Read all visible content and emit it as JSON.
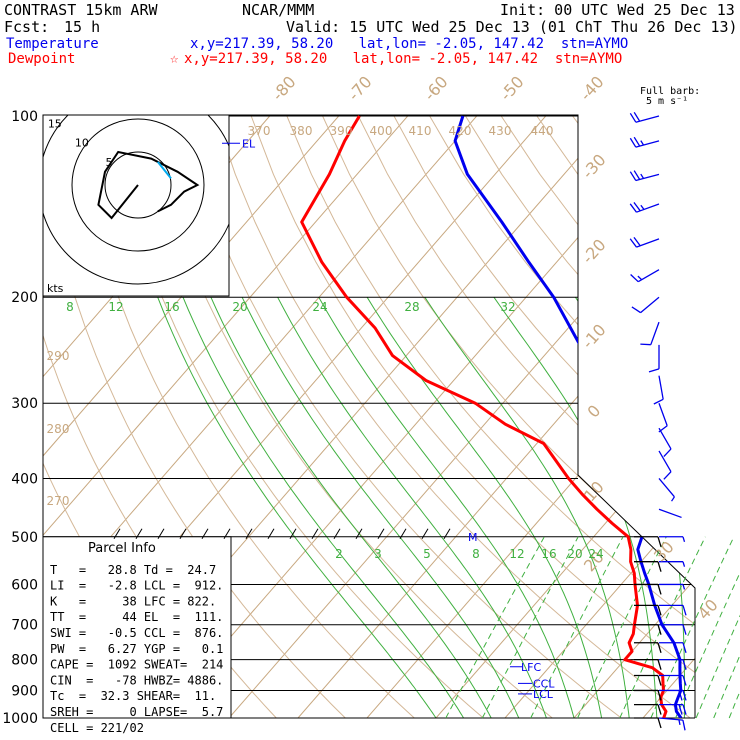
{
  "header": {
    "model": "CONTRAST 15km ARW",
    "center": "NCAR/MMM",
    "init": "Init: 00 UTC Wed 25 Dec 13",
    "fcst_label": "Fcst:",
    "fcst_value": "15 h",
    "valid": "Valid: 15 UTC Wed 25 Dec 13 (01 ChT Thu 26 Dec 13)"
  },
  "legend": [
    {
      "name": "Temperature",
      "marker": "",
      "info": "x,y=217.39, 58.20   lat,lon= -2.05, 147.42  stn=AYMO",
      "color": "#0000ee"
    },
    {
      "name": "Dewpoint",
      "marker": "☆",
      "info": "x,y=217.39, 58.20   lat,lon= -2.05, 147.42  stn=AYMO",
      "color": "#ff0000"
    }
  ],
  "barb_title": [
    "Full barb:",
    "5 m s⁻¹"
  ],
  "hodograph": {
    "rings": [
      "15",
      "10",
      "5"
    ],
    "units": "kts"
  },
  "parcel_info": {
    "title": "Parcel Info",
    "rows": [
      "T   =   28.8 Td =  24.7",
      "LI  =   -2.8 LCL =  912.",
      "K   =     38 LFC = 822.",
      "TT  =     44 EL  =  111.",
      "SWI =   -0.5 CCL =  876.",
      "PW  =   6.27 YGP =   0.1",
      "CAPE =  1092 SWEAT=  214",
      "CIN  =   -78 HWBZ= 4886.",
      "Tc  =  32.3 SHEAR=  11.",
      "SREH =     0 LAPSE=  5.7",
      "CELL = 221/02"
    ]
  },
  "levels": {
    "el": "EL",
    "lfc": "LFC",
    "ccl": "CCL",
    "lcl": "LCL",
    "m": "M"
  },
  "chart_data": {
    "type": "line",
    "pressure_ticks": [
      "100",
      "200",
      "300",
      "400",
      "500",
      "600",
      "700",
      "800",
      "900",
      "1000"
    ],
    "isotherm_labels": [
      "-80",
      "-70",
      "-60",
      "-50",
      "-40",
      "-30",
      "-20",
      "-10",
      "0",
      "10",
      "20",
      "30",
      "40"
    ],
    "theta_labels": [
      "370",
      "380",
      "390",
      "400",
      "410",
      "420",
      "430",
      "440",
      "290",
      "280",
      "270"
    ],
    "mixing_ratio_upper": [
      "8",
      "12",
      "16",
      "20",
      "24",
      "28",
      "32"
    ],
    "mixing_ratio_lower": [
      "2",
      "3",
      "5",
      "8",
      "12",
      "16",
      "20",
      "24"
    ],
    "series": [
      {
        "name": "Temperature",
        "color": "#0000ee",
        "points": [
          [
            1000,
            25.5
          ],
          [
            975,
            24
          ],
          [
            950,
            23
          ],
          [
            925,
            22.5
          ],
          [
            900,
            22
          ],
          [
            875,
            21
          ],
          [
            850,
            20
          ],
          [
            825,
            19
          ],
          [
            800,
            18
          ],
          [
            750,
            15
          ],
          [
            700,
            11
          ],
          [
            650,
            7.5
          ],
          [
            600,
            4
          ],
          [
            575,
            2
          ],
          [
            550,
            0
          ],
          [
            525,
            -2
          ],
          [
            500,
            -3
          ],
          [
            475,
            -4
          ],
          [
            450,
            -6
          ],
          [
            425,
            -8
          ],
          [
            400,
            -11
          ],
          [
            350,
            -16
          ],
          [
            300,
            -24
          ],
          [
            250,
            -34
          ],
          [
            200,
            -46
          ],
          [
            175,
            -54
          ],
          [
            150,
            -63
          ],
          [
            125,
            -74
          ],
          [
            110,
            -80
          ],
          [
            100,
            -82
          ]
        ]
      },
      {
        "name": "Dewpoint",
        "color": "#ff0000",
        "points": [
          [
            1000,
            23
          ],
          [
            975,
            22.5
          ],
          [
            950,
            21
          ],
          [
            925,
            20
          ],
          [
            900,
            19.5
          ],
          [
            875,
            18.5
          ],
          [
            850,
            17.5
          ],
          [
            825,
            15
          ],
          [
            800,
            10
          ],
          [
            775,
            10
          ],
          [
            750,
            8.5
          ],
          [
            725,
            8
          ],
          [
            700,
            7
          ],
          [
            650,
            5
          ],
          [
            600,
            2
          ],
          [
            575,
            0.5
          ],
          [
            550,
            -1.5
          ],
          [
            525,
            -3
          ],
          [
            500,
            -5
          ],
          [
            475,
            -9
          ],
          [
            450,
            -13
          ],
          [
            425,
            -17
          ],
          [
            400,
            -21
          ],
          [
            350,
            -29
          ],
          [
            325,
            -37
          ],
          [
            300,
            -44
          ],
          [
            275,
            -54
          ],
          [
            250,
            -62
          ],
          [
            225,
            -68
          ],
          [
            200,
            -76
          ],
          [
            175,
            -84
          ],
          [
            150,
            -92
          ],
          [
            125,
            -94
          ],
          [
            110,
            -96
          ],
          [
            100,
            -97
          ]
        ]
      }
    ],
    "wind_barbs_blue": [
      {
        "p": 100,
        "ws": 12,
        "dir": 255
      },
      {
        "p": 110,
        "ws": 13,
        "dir": 255
      },
      {
        "p": 125,
        "ws": 14,
        "dir": 255
      },
      {
        "p": 140,
        "ws": 13,
        "dir": 250
      },
      {
        "p": 160,
        "ws": 12,
        "dir": 250
      },
      {
        "p": 180,
        "ws": 9,
        "dir": 240
      },
      {
        "p": 200,
        "ws": 7,
        "dir": 230
      },
      {
        "p": 220,
        "ws": 6,
        "dir": 200
      },
      {
        "p": 240,
        "ws": 6,
        "dir": 180
      },
      {
        "p": 270,
        "ws": 5,
        "dir": 170
      },
      {
        "p": 300,
        "ws": 5,
        "dir": 160
      },
      {
        "p": 330,
        "ws": 5,
        "dir": 150
      },
      {
        "p": 360,
        "ws": 5,
        "dir": 150
      },
      {
        "p": 400,
        "ws": 3,
        "dir": 140
      },
      {
        "p": 450,
        "ws": 2,
        "dir": 110
      },
      {
        "p": 500,
        "ws": 3,
        "dir": 90
      },
      {
        "p": 550,
        "ws": 3,
        "dir": 90
      },
      {
        "p": 600,
        "ws": 4,
        "dir": 90
      },
      {
        "p": 650,
        "ws": 5,
        "dir": 90
      },
      {
        "p": 700,
        "ws": 5,
        "dir": 90
      },
      {
        "p": 750,
        "ws": 6,
        "dir": 90
      },
      {
        "p": 800,
        "ws": 7,
        "dir": 90
      },
      {
        "p": 850,
        "ws": 8,
        "dir": 90
      },
      {
        "p": 900,
        "ws": 10,
        "dir": 90
      },
      {
        "p": 950,
        "ws": 10,
        "dir": 90
      },
      {
        "p": 1000,
        "ws": 9,
        "dir": 95
      }
    ],
    "wind_barbs_black": [
      {
        "p": 500,
        "ws": 5,
        "dir": 90
      },
      {
        "p": 550,
        "ws": 5,
        "dir": 90
      },
      {
        "p": 600,
        "ws": 5,
        "dir": 90
      },
      {
        "p": 650,
        "ws": 5,
        "dir": 90
      },
      {
        "p": 700,
        "ws": 5,
        "dir": 90
      },
      {
        "p": 750,
        "ws": 5,
        "dir": 90
      },
      {
        "p": 800,
        "ws": 5,
        "dir": 90
      },
      {
        "p": 850,
        "ws": 5,
        "dir": 90
      },
      {
        "p": 900,
        "ws": 5,
        "dir": 90
      },
      {
        "p": 950,
        "ws": 5,
        "dir": 90
      },
      {
        "p": 1000,
        "ws": 5,
        "dir": 90
      }
    ],
    "hodograph_points": [
      [
        0,
        0
      ],
      [
        -4,
        -5
      ],
      [
        -6,
        -3
      ],
      [
        -5,
        2
      ],
      [
        -3,
        5
      ],
      [
        2,
        4
      ],
      [
        6,
        2
      ],
      [
        9,
        0
      ],
      [
        7,
        -1
      ],
      [
        5,
        -3
      ],
      [
        3,
        -4
      ]
    ]
  }
}
